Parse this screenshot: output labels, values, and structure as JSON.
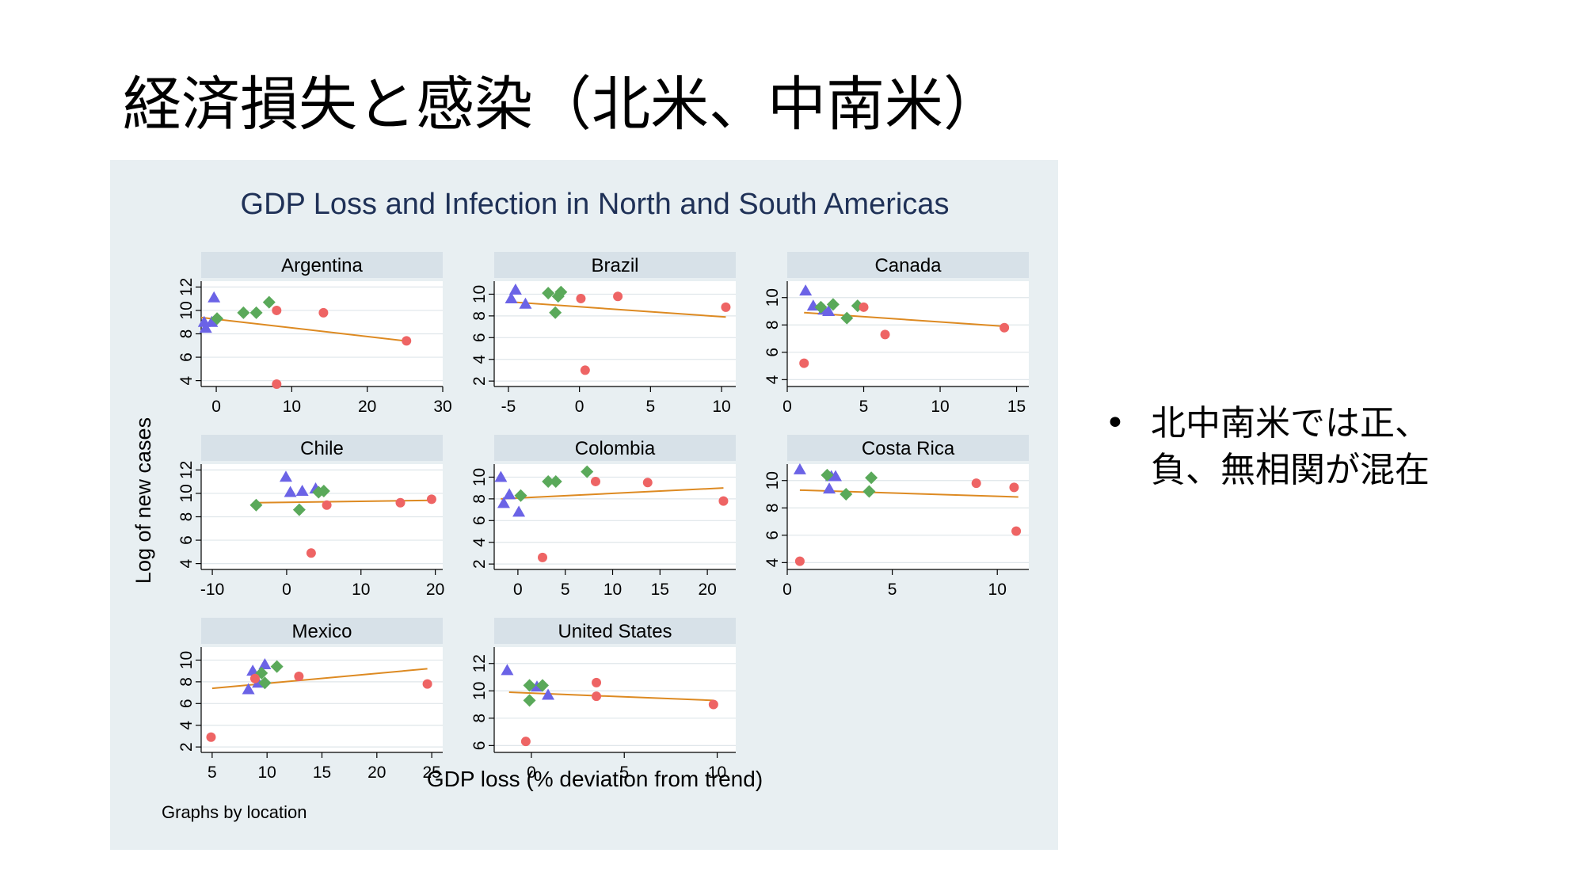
{
  "slide": {
    "title": "経済損失と感染（北米、中南米）",
    "bullet_marker": "•",
    "bullet_text": "北中南米では正、負、無相関が混在"
  },
  "chart_data": {
    "type": "scatter",
    "title": "GDP Loss and Infection in North and South Americas",
    "xlabel": "GDP loss (% deviation from trend)",
    "ylabel": "Log of new cases",
    "note": "Graphs by location",
    "colors": {
      "triangle": "#6b63e6",
      "diamond": "#5aa95a",
      "circle": "#ee6464",
      "fit": "#dd8a22",
      "strip": "#d7e1e8",
      "plot_bg": "#ffffff",
      "title": "#1f3157"
    },
    "panels": [
      {
        "name": "Argentina",
        "xlim": [
          -2,
          30
        ],
        "ylim": [
          3.5,
          12.5
        ],
        "xticks": [
          0,
          10,
          20,
          30
        ],
        "xtick_labels": [
          "0",
          "10",
          "20",
          "30"
        ],
        "yticks": [
          4,
          6,
          8,
          10,
          12
        ],
        "ytick_labels": [
          "4",
          "6",
          "8",
          "10",
          "12"
        ],
        "fit": [
          [
            -2,
            9.4
          ],
          [
            25,
            7.4
          ]
        ],
        "points": [
          {
            "x": -0.3,
            "y": 11.1,
            "m": "triangle"
          },
          {
            "x": -1.6,
            "y": 9.0,
            "m": "triangle"
          },
          {
            "x": -1.4,
            "y": 8.5,
            "m": "triangle"
          },
          {
            "x": -0.6,
            "y": 9.0,
            "m": "triangle"
          },
          {
            "x": 0.1,
            "y": 9.3,
            "m": "diamond"
          },
          {
            "x": 3.6,
            "y": 9.8,
            "m": "diamond"
          },
          {
            "x": 5.3,
            "y": 9.8,
            "m": "diamond"
          },
          {
            "x": 7.0,
            "y": 10.7,
            "m": "diamond"
          },
          {
            "x": 8.0,
            "y": 10.0,
            "m": "circle"
          },
          {
            "x": 14.2,
            "y": 9.8,
            "m": "circle"
          },
          {
            "x": 25.2,
            "y": 7.4,
            "m": "circle"
          },
          {
            "x": 8.0,
            "y": 3.7,
            "m": "circle"
          }
        ]
      },
      {
        "name": "Brazil",
        "xlim": [
          -6,
          11
        ],
        "ylim": [
          1.5,
          11.2
        ],
        "xticks": [
          -5,
          0,
          5,
          10
        ],
        "xtick_labels": [
          "-5",
          "0",
          "5",
          "10"
        ],
        "yticks": [
          2,
          4,
          6,
          8,
          10
        ],
        "ytick_labels": [
          "2",
          "4",
          "6",
          "8",
          "10"
        ],
        "fit": [
          [
            -5,
            9.3
          ],
          [
            10.3,
            7.9
          ]
        ],
        "points": [
          {
            "x": -4.5,
            "y": 10.4,
            "m": "triangle"
          },
          {
            "x": -4.8,
            "y": 9.6,
            "m": "triangle"
          },
          {
            "x": -3.8,
            "y": 9.1,
            "m": "triangle"
          },
          {
            "x": -2.2,
            "y": 10.1,
            "m": "diamond"
          },
          {
            "x": -1.5,
            "y": 9.8,
            "m": "diamond"
          },
          {
            "x": -1.3,
            "y": 10.2,
            "m": "diamond"
          },
          {
            "x": -1.7,
            "y": 8.3,
            "m": "diamond"
          },
          {
            "x": 0.1,
            "y": 9.6,
            "m": "circle"
          },
          {
            "x": 2.7,
            "y": 9.8,
            "m": "circle"
          },
          {
            "x": 10.3,
            "y": 8.8,
            "m": "circle"
          },
          {
            "x": 0.4,
            "y": 3.0,
            "m": "circle"
          }
        ]
      },
      {
        "name": "Canada",
        "xlim": [
          0,
          15.8
        ],
        "ylim": [
          3.5,
          11.2
        ],
        "xticks": [
          0,
          5,
          10,
          15
        ],
        "xtick_labels": [
          "0",
          "5",
          "10",
          "15"
        ],
        "yticks": [
          4,
          6,
          8,
          10
        ],
        "ytick_labels": [
          "4",
          "6",
          "8",
          "10"
        ],
        "fit": [
          [
            1.1,
            8.9
          ],
          [
            14.2,
            7.9
          ]
        ],
        "points": [
          {
            "x": 1.2,
            "y": 10.5,
            "m": "triangle"
          },
          {
            "x": 1.7,
            "y": 9.4,
            "m": "triangle"
          },
          {
            "x": 2.4,
            "y": 9.1,
            "m": "triangle"
          },
          {
            "x": 2.7,
            "y": 9.0,
            "m": "triangle"
          },
          {
            "x": 2.2,
            "y": 9.3,
            "m": "diamond"
          },
          {
            "x": 3.0,
            "y": 9.5,
            "m": "diamond"
          },
          {
            "x": 3.9,
            "y": 8.5,
            "m": "diamond"
          },
          {
            "x": 4.6,
            "y": 9.4,
            "m": "diamond"
          },
          {
            "x": 5.0,
            "y": 9.3,
            "m": "circle"
          },
          {
            "x": 6.4,
            "y": 7.3,
            "m": "circle"
          },
          {
            "x": 14.2,
            "y": 7.8,
            "m": "circle"
          },
          {
            "x": 1.1,
            "y": 5.2,
            "m": "circle"
          }
        ]
      },
      {
        "name": "Chile",
        "xlim": [
          -11.5,
          21
        ],
        "ylim": [
          3.5,
          12.5
        ],
        "xticks": [
          -10,
          0,
          10,
          20
        ],
        "xtick_labels": [
          "-10",
          "0",
          "10",
          "20"
        ],
        "yticks": [
          4,
          6,
          8,
          10,
          12
        ],
        "ytick_labels": [
          "4",
          "6",
          "8",
          "10",
          "12"
        ],
        "fit": [
          [
            -4.2,
            9.2
          ],
          [
            19.5,
            9.4
          ]
        ],
        "points": [
          {
            "x": -0.1,
            "y": 11.4,
            "m": "triangle"
          },
          {
            "x": 0.5,
            "y": 10.1,
            "m": "triangle"
          },
          {
            "x": 2.1,
            "y": 10.2,
            "m": "triangle"
          },
          {
            "x": 3.9,
            "y": 10.4,
            "m": "triangle"
          },
          {
            "x": -4.1,
            "y": 9.0,
            "m": "diamond"
          },
          {
            "x": 1.7,
            "y": 8.6,
            "m": "diamond"
          },
          {
            "x": 4.3,
            "y": 10.1,
            "m": "diamond"
          },
          {
            "x": 5.0,
            "y": 10.2,
            "m": "diamond"
          },
          {
            "x": 5.4,
            "y": 9.0,
            "m": "circle"
          },
          {
            "x": 15.3,
            "y": 9.2,
            "m": "circle"
          },
          {
            "x": 19.5,
            "y": 9.5,
            "m": "circle"
          },
          {
            "x": 3.3,
            "y": 4.9,
            "m": "circle"
          }
        ]
      },
      {
        "name": "Colombia",
        "xlim": [
          -2.5,
          23
        ],
        "ylim": [
          1.5,
          11.2
        ],
        "xticks": [
          0,
          5,
          10,
          15,
          20
        ],
        "xtick_labels": [
          "0",
          "5",
          "10",
          "15",
          "20"
        ],
        "yticks": [
          2,
          4,
          6,
          8,
          10
        ],
        "ytick_labels": [
          "2",
          "4",
          "6",
          "8",
          "10"
        ],
        "fit": [
          [
            -1.8,
            8.0
          ],
          [
            21.7,
            9.0
          ]
        ],
        "points": [
          {
            "x": -1.8,
            "y": 10.0,
            "m": "triangle"
          },
          {
            "x": -1.5,
            "y": 7.6,
            "m": "triangle"
          },
          {
            "x": -0.9,
            "y": 8.4,
            "m": "triangle"
          },
          {
            "x": 0.1,
            "y": 6.8,
            "m": "triangle"
          },
          {
            "x": 0.3,
            "y": 8.3,
            "m": "diamond"
          },
          {
            "x": 3.2,
            "y": 9.6,
            "m": "diamond"
          },
          {
            "x": 4.0,
            "y": 9.6,
            "m": "diamond"
          },
          {
            "x": 7.3,
            "y": 10.5,
            "m": "diamond"
          },
          {
            "x": 8.2,
            "y": 9.6,
            "m": "circle"
          },
          {
            "x": 13.7,
            "y": 9.5,
            "m": "circle"
          },
          {
            "x": 21.7,
            "y": 7.8,
            "m": "circle"
          },
          {
            "x": 2.6,
            "y": 2.6,
            "m": "circle"
          }
        ]
      },
      {
        "name": "Costa Rica",
        "xlim": [
          0,
          11.5
        ],
        "ylim": [
          3.5,
          11.2
        ],
        "xticks": [
          0,
          5,
          10
        ],
        "xtick_labels": [
          "0",
          "5",
          "10"
        ],
        "yticks": [
          4,
          6,
          8,
          10
        ],
        "ytick_labels": [
          "4",
          "6",
          "8",
          "10"
        ],
        "fit": [
          [
            0.6,
            9.3
          ],
          [
            11.0,
            8.8
          ]
        ],
        "points": [
          {
            "x": 0.6,
            "y": 10.8,
            "m": "triangle"
          },
          {
            "x": 2.1,
            "y": 10.3,
            "m": "triangle"
          },
          {
            "x": 2.3,
            "y": 10.3,
            "m": "triangle"
          },
          {
            "x": 2.0,
            "y": 9.4,
            "m": "triangle"
          },
          {
            "x": 1.9,
            "y": 10.4,
            "m": "diamond"
          },
          {
            "x": 2.8,
            "y": 9.0,
            "m": "diamond"
          },
          {
            "x": 3.9,
            "y": 9.2,
            "m": "diamond"
          },
          {
            "x": 4.0,
            "y": 10.2,
            "m": "diamond"
          },
          {
            "x": 9.0,
            "y": 9.8,
            "m": "circle"
          },
          {
            "x": 10.8,
            "y": 9.5,
            "m": "circle"
          },
          {
            "x": 10.9,
            "y": 6.3,
            "m": "circle"
          },
          {
            "x": 0.6,
            "y": 4.1,
            "m": "circle"
          }
        ]
      },
      {
        "name": "Mexico",
        "xlim": [
          4,
          26
        ],
        "ylim": [
          1.5,
          11.2
        ],
        "xticks": [
          5,
          10,
          15,
          20,
          25
        ],
        "xtick_labels": [
          "5",
          "10",
          "15",
          "20",
          "25"
        ],
        "yticks": [
          2,
          4,
          6,
          8,
          10
        ],
        "ytick_labels": [
          "2",
          "4",
          "6",
          "8",
          "10"
        ],
        "fit": [
          [
            5.0,
            7.4
          ],
          [
            24.6,
            9.2
          ]
        ],
        "points": [
          {
            "x": 9.8,
            "y": 9.6,
            "m": "triangle"
          },
          {
            "x": 8.7,
            "y": 9.0,
            "m": "triangle"
          },
          {
            "x": 8.3,
            "y": 7.3,
            "m": "triangle"
          },
          {
            "x": 9.2,
            "y": 7.9,
            "m": "triangle"
          },
          {
            "x": 9.5,
            "y": 8.8,
            "m": "diamond"
          },
          {
            "x": 9.8,
            "y": 7.9,
            "m": "diamond"
          },
          {
            "x": 10.9,
            "y": 9.4,
            "m": "diamond"
          },
          {
            "x": 12.9,
            "y": 8.5,
            "m": "circle"
          },
          {
            "x": 24.6,
            "y": 7.8,
            "m": "circle"
          },
          {
            "x": 4.9,
            "y": 2.9,
            "m": "circle"
          },
          {
            "x": 8.9,
            "y": 8.3,
            "m": "circle"
          }
        ]
      },
      {
        "name": "United States",
        "xlim": [
          -2,
          11
        ],
        "ylim": [
          5.5,
          13.2
        ],
        "xticks": [
          0,
          5,
          10
        ],
        "xtick_labels": [
          "0",
          "5",
          "10"
        ],
        "yticks": [
          6,
          8,
          10,
          12
        ],
        "ytick_labels": [
          "6",
          "8",
          "10",
          "12"
        ],
        "fit": [
          [
            -1.2,
            9.9
          ],
          [
            9.8,
            9.3
          ]
        ],
        "points": [
          {
            "x": -1.3,
            "y": 11.5,
            "m": "triangle"
          },
          {
            "x": 0.3,
            "y": 10.3,
            "m": "triangle"
          },
          {
            "x": 0.9,
            "y": 9.7,
            "m": "triangle"
          },
          {
            "x": -0.1,
            "y": 10.4,
            "m": "diamond"
          },
          {
            "x": -0.1,
            "y": 9.3,
            "m": "diamond"
          },
          {
            "x": 0.6,
            "y": 10.4,
            "m": "diamond"
          },
          {
            "x": 3.5,
            "y": 10.6,
            "m": "circle"
          },
          {
            "x": 3.5,
            "y": 9.6,
            "m": "circle"
          },
          {
            "x": 9.8,
            "y": 9.0,
            "m": "circle"
          },
          {
            "x": -0.3,
            "y": 6.3,
            "m": "circle"
          }
        ]
      }
    ]
  }
}
